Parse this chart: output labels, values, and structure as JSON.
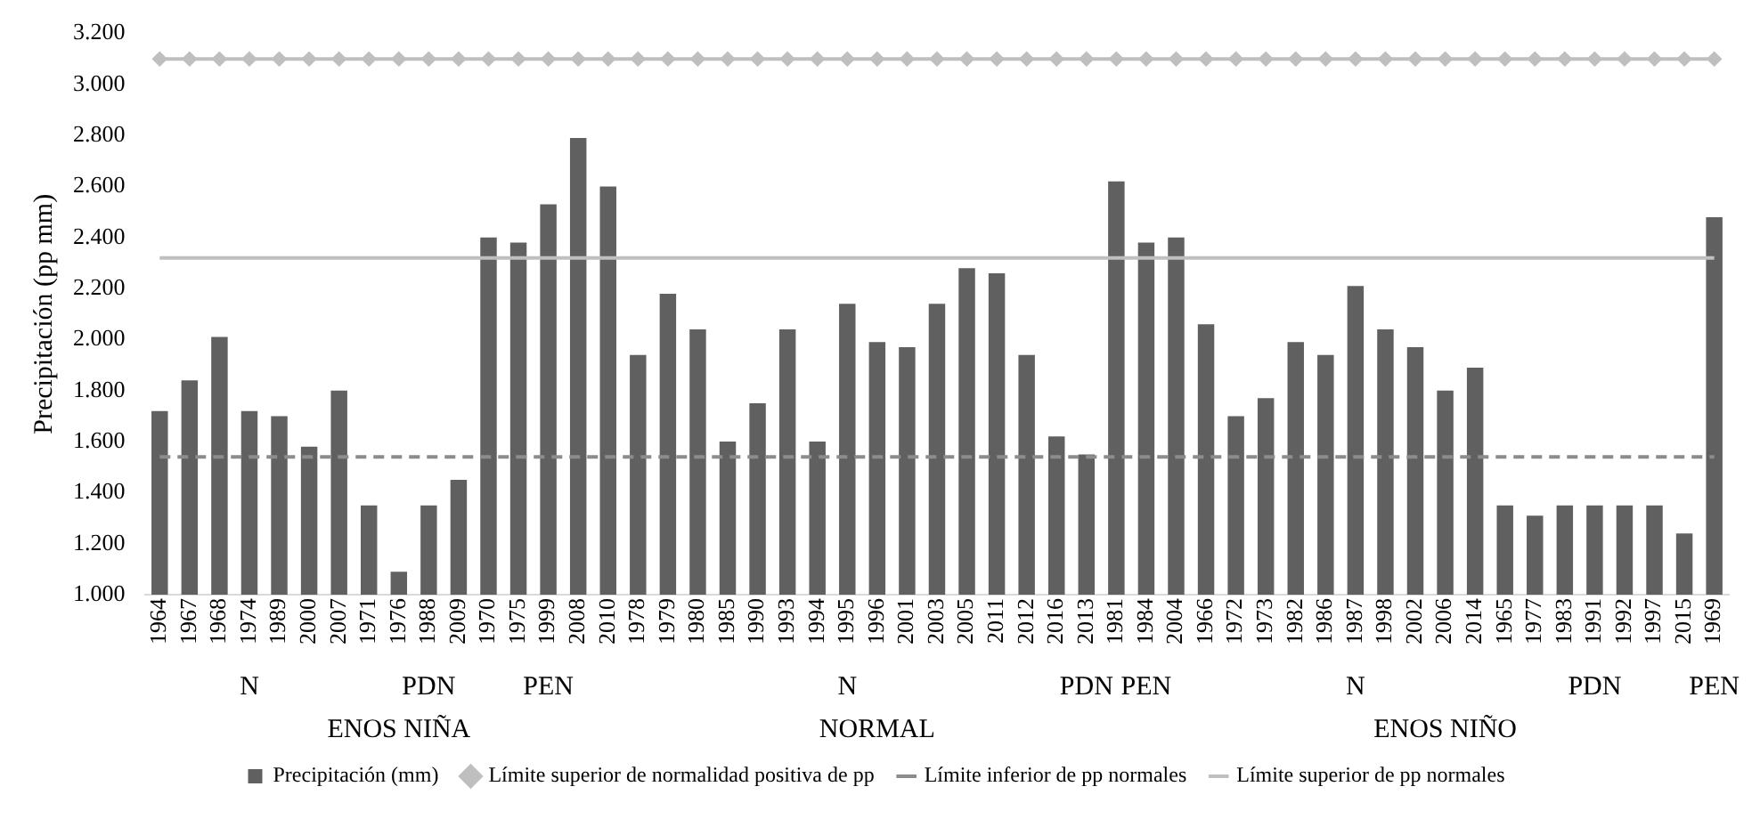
{
  "chart_data": {
    "type": "bar",
    "ylabel": "Precipitación (pp mm)",
    "categories": [
      "1964",
      "1967",
      "1968",
      "1974",
      "1989",
      "2000",
      "2007",
      "1971",
      "1976",
      "1988",
      "2009",
      "1970",
      "1975",
      "1999",
      "2008",
      "2010",
      "1978",
      "1979",
      "1980",
      "1985",
      "1990",
      "1993",
      "1994",
      "1995",
      "1996",
      "2001",
      "2003",
      "2005",
      "2011",
      "2012",
      "2016",
      "2013",
      "1981",
      "1984",
      "2004",
      "1966",
      "1972",
      "1973",
      "1982",
      "1986",
      "1987",
      "1998",
      "2002",
      "2006",
      "2014",
      "1965",
      "1977",
      "1983",
      "1991",
      "1992",
      "1997",
      "2015",
      "1969"
    ],
    "series": [
      {
        "name": "Precipitación (mm)",
        "color": "#5f605f",
        "values": [
          1720,
          1840,
          2010,
          1720,
          1700,
          1580,
          1800,
          1350,
          1090,
          1350,
          1450,
          2400,
          2380,
          2530,
          2790,
          2600,
          1940,
          2180,
          2040,
          1600,
          1750,
          2040,
          1600,
          2140,
          1990,
          1970,
          2140,
          2280,
          2260,
          1940,
          1620,
          1550,
          2620,
          2380,
          2400,
          2060,
          1700,
          1770,
          1990,
          1940,
          2210,
          2040,
          1970,
          1800,
          1890,
          1350,
          1310,
          1350,
          1350,
          1350,
          1350,
          1240,
          2480
        ]
      },
      {
        "name": "Límite superior de normalidad positiva de pp",
        "type": "line",
        "color": "#bfbfbf",
        "marker": "diamond",
        "values": [
          3100,
          3100,
          3100,
          3100,
          3100,
          3100,
          3100,
          3100,
          3100,
          3100,
          3100,
          3100,
          3100,
          3100,
          3100,
          3100,
          3100,
          3100,
          3100,
          3100,
          3100,
          3100,
          3100,
          3100,
          3100,
          3100,
          3100,
          3100,
          3100,
          3100,
          3100,
          3100,
          3100,
          3100,
          3100,
          3100,
          3100,
          3100,
          3100,
          3100,
          3100,
          3100,
          3100,
          3100,
          3100,
          3100,
          3100,
          3100,
          3100,
          3100,
          3100,
          3100,
          3100
        ]
      },
      {
        "name": "Límite inferior de pp normales",
        "type": "line",
        "color": "#8c8c8c",
        "line_style": "dashed",
        "values": [
          1540,
          1540,
          1540,
          1540,
          1540,
          1540,
          1540,
          1540,
          1540,
          1540,
          1540,
          1540,
          1540,
          1540,
          1540,
          1540,
          1540,
          1540,
          1540,
          1540,
          1540,
          1540,
          1540,
          1540,
          1540,
          1540,
          1540,
          1540,
          1540,
          1540,
          1540,
          1540,
          1540,
          1540,
          1540,
          1540,
          1540,
          1540,
          1540,
          1540,
          1540,
          1540,
          1540,
          1540,
          1540,
          1540,
          1540,
          1540,
          1540,
          1540,
          1540,
          1540,
          1540
        ]
      },
      {
        "name": "Límite superior de pp normales",
        "type": "line",
        "color": "#bfbfbf",
        "line_style": "solid",
        "values": [
          2320,
          2320,
          2320,
          2320,
          2320,
          2320,
          2320,
          2320,
          2320,
          2320,
          2320,
          2320,
          2320,
          2320,
          2320,
          2320,
          2320,
          2320,
          2320,
          2320,
          2320,
          2320,
          2320,
          2320,
          2320,
          2320,
          2320,
          2320,
          2320,
          2320,
          2320,
          2320,
          2320,
          2320,
          2320,
          2320,
          2320,
          2320,
          2320,
          2320,
          2320,
          2320,
          2320,
          2320,
          2320,
          2320,
          2320,
          2320,
          2320,
          2320,
          2320,
          2320,
          2320
        ]
      }
    ],
    "ylim": [
      1000,
      3200
    ],
    "yticks": [
      {
        "value": 1000,
        "label": "1.000"
      },
      {
        "value": 1200,
        "label": "1.200"
      },
      {
        "value": 1400,
        "label": "1.400"
      },
      {
        "value": 1600,
        "label": "1.600"
      },
      {
        "value": 1800,
        "label": "1.800"
      },
      {
        "value": 2000,
        "label": "2.000"
      },
      {
        "value": 2200,
        "label": "2.200"
      },
      {
        "value": 2400,
        "label": "2.400"
      },
      {
        "value": 2600,
        "label": "2.600"
      },
      {
        "value": 2800,
        "label": "2.800"
      },
      {
        "value": 3000,
        "label": "3.000"
      },
      {
        "value": 3200,
        "label": "3.200"
      }
    ],
    "grid": false,
    "legend": "bottom",
    "annotations": [
      {
        "text": "N",
        "x": "1974"
      },
      {
        "text": "PDN",
        "x": "1988"
      },
      {
        "text": "PEN",
        "x": "1999"
      },
      {
        "text": "N",
        "x": "1995"
      },
      {
        "text": "PDN",
        "x": "2013"
      },
      {
        "text": "PEN",
        "x": "1984"
      },
      {
        "text": "N",
        "x": "1987"
      },
      {
        "text": "PDN",
        "x": "1991"
      },
      {
        "text": "PEN",
        "x": "1969"
      },
      {
        "text": "ENOS NIÑA",
        "x": "1976"
      },
      {
        "text": "NORMAL",
        "x": "1996"
      },
      {
        "text": "ENOS NIÑO",
        "x": "2006"
      }
    ]
  }
}
